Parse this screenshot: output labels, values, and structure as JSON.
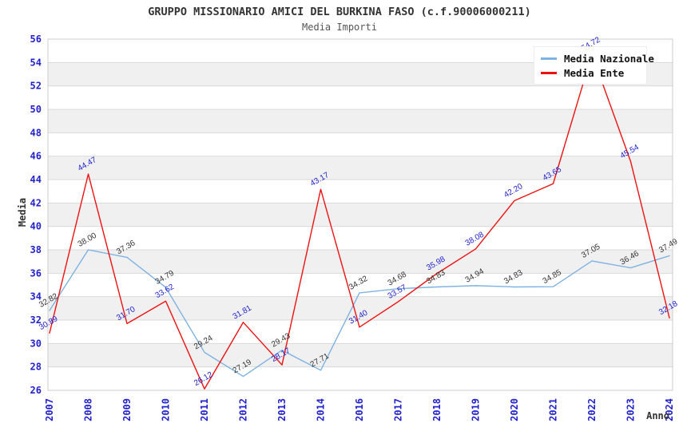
{
  "chart_data": {
    "type": "line",
    "title": "GRUPPO MISSIONARIO AMICI DEL BURKINA FASO (c.f.90006000211)",
    "subtitle": "Media Importi",
    "xlabel": "Anno",
    "ylabel": "Media",
    "ylim": [
      26,
      56
    ],
    "ytick_step": 2,
    "grid": "horizontal-bands",
    "legend_position": "top-right",
    "categories": [
      "2007",
      "2008",
      "2009",
      "2010",
      "2011",
      "2012",
      "2013",
      "2014",
      "2016",
      "2017",
      "2018",
      "2019",
      "2020",
      "2021",
      "2022",
      "2023",
      "2024"
    ],
    "series": [
      {
        "name": "Media Nazionale",
        "color": "#7eb2e2",
        "label_color": "#333333",
        "values": [
          32.82,
          38.0,
          37.36,
          34.79,
          29.24,
          27.19,
          29.43,
          27.71,
          34.32,
          34.68,
          34.83,
          34.94,
          34.83,
          34.85,
          37.05,
          36.46,
          37.49
        ]
      },
      {
        "name": "Media Ente",
        "color": "#ee1111",
        "label_color": "#2222cc",
        "values": [
          30.89,
          44.47,
          31.7,
          33.62,
          26.12,
          31.81,
          28.17,
          43.17,
          31.4,
          33.57,
          35.98,
          38.08,
          42.2,
          43.65,
          54.72,
          45.54,
          32.18
        ]
      }
    ],
    "colors": {
      "tick_label": "#2222cc",
      "band": "#f0f0f0",
      "band_alt": "#ffffff",
      "gridline": "#d9d9d9",
      "plot_border": "#cccccc",
      "title": "#333333",
      "subtitle": "#555555",
      "axis_title": "#333333"
    }
  }
}
